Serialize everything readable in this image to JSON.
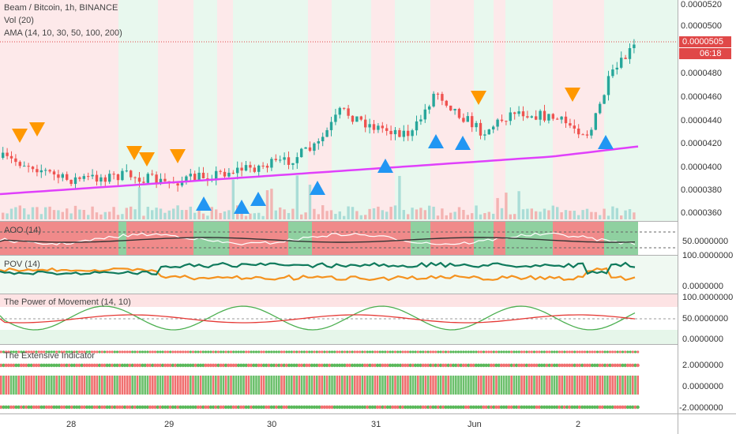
{
  "header": {
    "symbol_line": "Beam / Bitcoin, 1h, BINANCE",
    "volume_line": "Vol (20)",
    "ama_line": "AMA (14, 10, 30, 50, 100, 200)"
  },
  "price_axis": {
    "labels": [
      "0.0000520",
      "0.0000500",
      "0.0000480",
      "0.0000460",
      "0.0000440",
      "0.0000420",
      "0.0000400",
      "0.0000380",
      "0.0000360"
    ],
    "current_price": "0.0000505",
    "countdown": "06:18"
  },
  "panes": {
    "aoo": {
      "title": "AOO (14)",
      "axis_labels": [
        "50.0000000"
      ]
    },
    "pov": {
      "title": "POV (14)",
      "axis_labels": [
        "100.0000000",
        "0.0000000"
      ]
    },
    "tpm": {
      "title": "The Power of Movement (14, 10)",
      "axis_labels": [
        "100.0000000",
        "50.0000000",
        "0.0000000"
      ]
    },
    "extensive": {
      "title": "The Extensive Indicator",
      "axis_labels": [
        "2.0000000",
        "0.0000000",
        "-2.0000000"
      ]
    }
  },
  "time_axis": {
    "labels": [
      "28",
      "29",
      "30",
      "31",
      "Jun",
      "2"
    ]
  },
  "colors": {
    "bull": "#26a69a",
    "bear": "#ef5350",
    "ama": "#e040fb",
    "buy_marker": "#2196f3",
    "sell_marker": "#ff9800",
    "bull_bg": "#e8f8ee",
    "bear_bg": "#fde9ea",
    "price_tag": "#e04848"
  },
  "icons": {
    "buy_signal": "triangle-up-icon",
    "sell_signal": "triangle-down-icon"
  }
}
